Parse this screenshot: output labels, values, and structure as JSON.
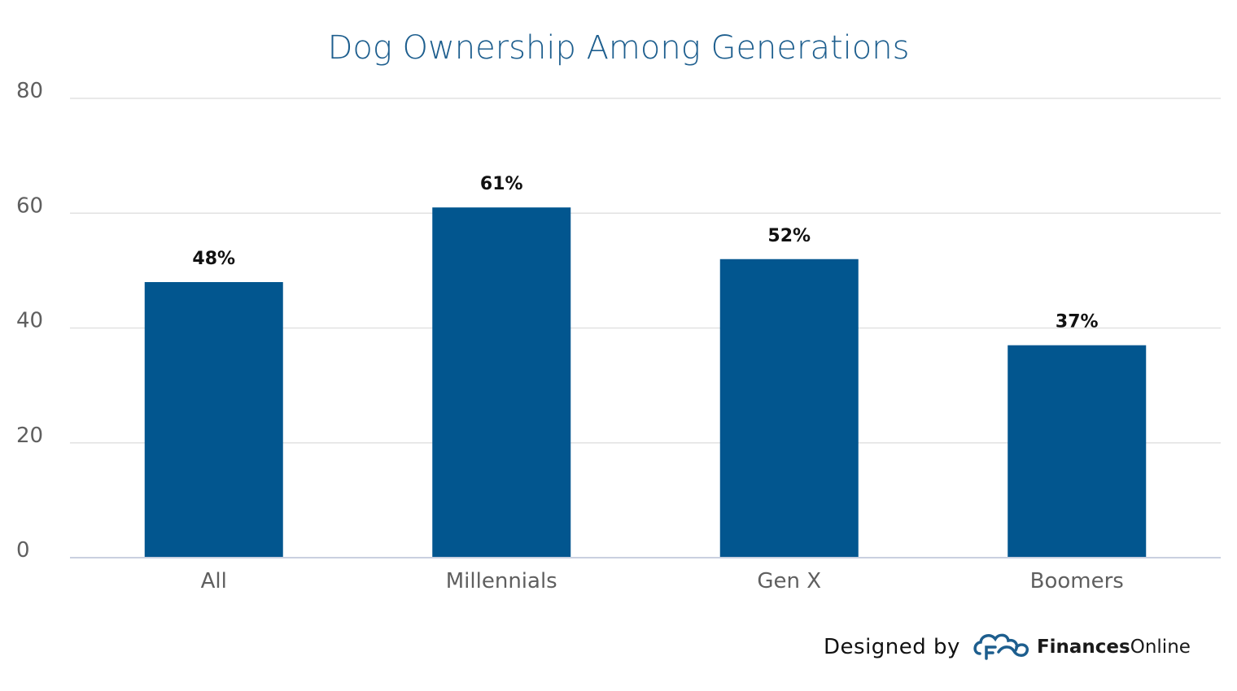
{
  "chart_data": {
    "type": "bar",
    "title": "Dog Ownership Among Generations",
    "categories": [
      "All",
      "Millennials",
      "Gen X",
      "Boomers"
    ],
    "values": [
      48,
      61,
      52,
      37
    ],
    "data_labels": [
      "48%",
      "61%",
      "52%",
      "37%"
    ],
    "yticks": [
      "0",
      "20",
      "40",
      "60",
      "80"
    ],
    "ylim": [
      0,
      80
    ],
    "grid": true,
    "legend": "none",
    "bar_color": "#02568f"
  },
  "credit": {
    "designed_by": "Designed by",
    "brand_bold": "Finances",
    "brand_light": "Online",
    "logo_icon": "cloud-f-logo-icon"
  }
}
